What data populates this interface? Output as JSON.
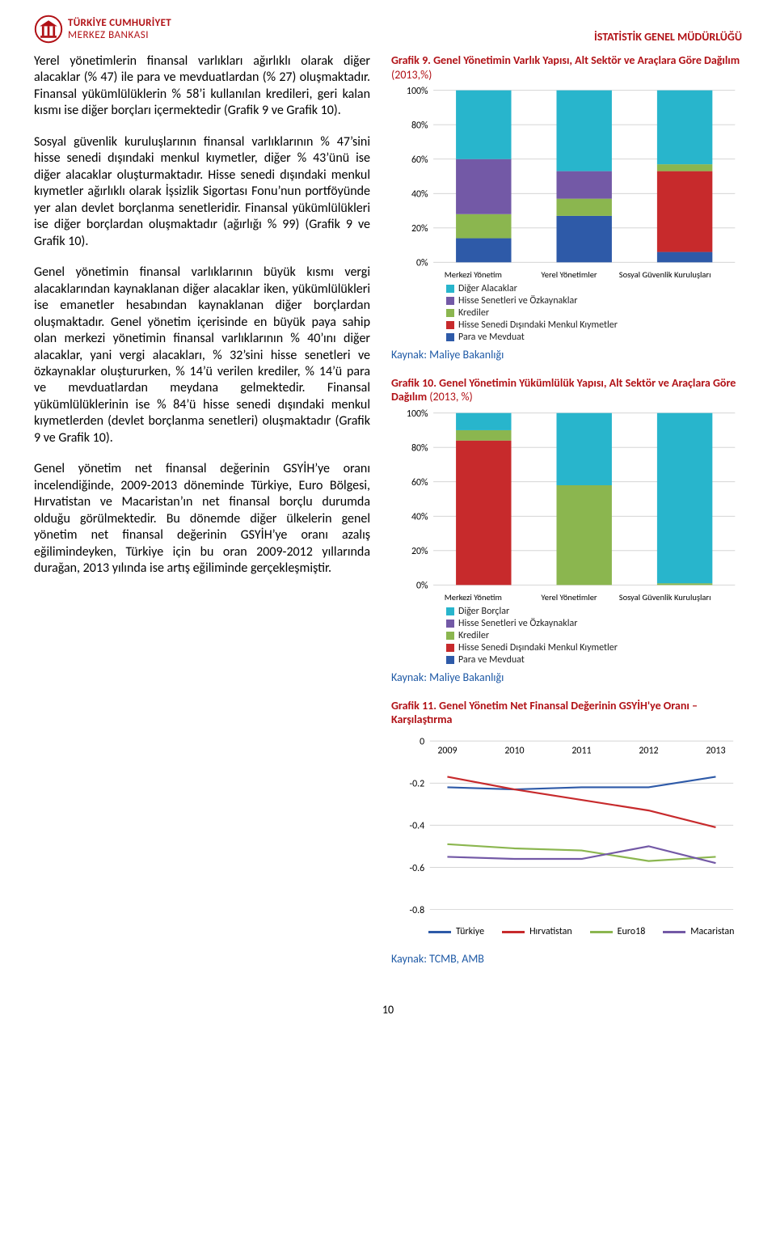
{
  "header": {
    "brand_line1": "TÜRKİYE CUMHURİYET",
    "brand_line2": "MERKEZ BANKASI",
    "right_label": "İSTATİSTİK GENEL MÜDÜRLÜĞÜ"
  },
  "paragraphs": {
    "p1": "Yerel yönetimlerin finansal varlıkları ağırlıklı olarak diğer alacaklar (% 47) ile para ve mevduatlardan (% 27) oluşmaktadır. Finansal yükümlülüklerin % 58’i kullanılan kredileri, geri kalan kısmı ise diğer borçları içermektedir (Grafik 9 ve Grafik 10).",
    "p2": "Sosyal güvenlik kuruluşlarının finansal varlıklarının % 47’sini hisse senedi dışındaki menkul kıymetler, diğer % 43’ünü ise diğer alacaklar oluşturmaktadır. Hisse senedi dışındaki menkul kıymetler ağırlıklı olarak İşsizlik Sigortası Fonu’nun portföyünde yer alan devlet borçlanma senetleridir. Finansal yükümlülükleri ise diğer borçlardan oluşmaktadır (ağırlığı % 99) (Grafik 9 ve Grafik 10).",
    "p3": "Genel yönetimin finansal varlıklarının büyük kısmı vergi alacaklarından kaynaklanan diğer alacaklar iken, yükümlülükleri ise emanetler hesabından kaynaklanan diğer borçlardan oluşmaktadır. Genel yönetim içerisinde en büyük paya sahip olan merkezi yönetimin finansal varlıklarının % 40’ını diğer alacaklar, yani vergi alacakları, % 32’sini hisse senetleri ve özkaynaklar oluştururken, % 14’ü verilen krediler, % 14’ü para ve mevduatlardan meydana gelmektedir. Finansal yükümlülüklerinin ise % 84’ü hisse senedi dışındaki menkul kıymetlerden (devlet borçlanma senetleri) oluşmaktadır (Grafik 9 ve Grafik 10).",
    "p4": "Genel yönetim net finansal değerinin GSYİH’ye oranı incelendiğinde, 2009-2013 döneminde Türkiye, Euro Bölgesi, Hırvatistan ve Macaristan’ın net finansal borçlu durumda olduğu görülmektedir. Bu dönemde diğer ülkelerin genel yönetim net finansal değerinin GSYİH’ye oranı azalış eğilimindeyken, Türkiye için bu oran 2009-2012 yıllarında durağan, 2013 yılında ise artış eğiliminde gerçekleşmiştir."
  },
  "chart9": {
    "title_lead": "Grafik 9.",
    "title_rest": " Genel Yönetimin Varlık Yapısı, Alt Sektör ve Araçlara Göre Dağılım ",
    "title_paren": "(2013,%)",
    "type": "stacked-bar",
    "categories": [
      "Merkezi Yönetim",
      "Yerel Yönetimler",
      "Sosyal Güvenlik Kuruluşları"
    ],
    "ylabels": [
      "0%",
      "20%",
      "40%",
      "60%",
      "80%",
      "100%"
    ],
    "series": [
      {
        "name": "Para ve Mevduat",
        "color": "#2e5aa8",
        "vals": [
          14,
          27,
          6
        ]
      },
      {
        "name": "Hisse Senedi Dışındaki Menkul Kıymetler",
        "color": "#c72a2c",
        "vals": [
          0,
          0,
          47
        ]
      },
      {
        "name": "Krediler",
        "color": "#8bb64f",
        "vals": [
          14,
          10,
          4
        ]
      },
      {
        "name": "Hisse Senetleri ve Özkaynaklar",
        "color": "#7359a6",
        "vals": [
          32,
          16,
          0
        ]
      },
      {
        "name": "Diğer Alacaklar",
        "color": "#28b5cc",
        "vals": [
          40,
          47,
          43
        ]
      }
    ],
    "legend_items": [
      {
        "name": "Diğer Alacaklar",
        "color": "#28b5cc"
      },
      {
        "name": "Hisse Senetleri ve Özkaynaklar",
        "color": "#7359a6"
      },
      {
        "name": "Krediler",
        "color": "#8bb64f"
      },
      {
        "name": "Hisse Senedi Dışındaki Menkul Kıymetler",
        "color": "#c72a2c"
      },
      {
        "name": "Para ve Mevduat",
        "color": "#2e5aa8"
      }
    ],
    "source": "Kaynak: Maliye Bakanlığı",
    "grid_color": "#cfcfcf",
    "bar_width": 0.55,
    "plot_bg": "#ffffff"
  },
  "chart10": {
    "title_lead": "Grafik 10.",
    "title_rest": "  Genel Yönetimin Yükümlülük Yapısı, Alt Sektör ve Araçlara Göre Dağılım ",
    "title_paren": "(2013, %)",
    "type": "stacked-bar",
    "categories": [
      "Merkezi Yönetim",
      "Yerel Yönetimler",
      "Sosyal Güvenlik Kuruluşları"
    ],
    "ylabels": [
      "0%",
      "20%",
      "40%",
      "60%",
      "80%",
      "100%"
    ],
    "series": [
      {
        "name": "Para ve Mevduat",
        "color": "#2e5aa8",
        "vals": [
          0,
          0,
          0
        ]
      },
      {
        "name": "Hisse Senedi Dışındaki Menkul Kıymetler",
        "color": "#c72a2c",
        "vals": [
          84,
          0,
          0
        ]
      },
      {
        "name": "Krediler",
        "color": "#8bb64f",
        "vals": [
          6,
          58,
          1
        ]
      },
      {
        "name": "Hisse Senetleri ve Özkaynaklar",
        "color": "#7359a6",
        "vals": [
          0,
          0,
          0
        ]
      },
      {
        "name": "Diğer Borçlar",
        "color": "#28b5cc",
        "vals": [
          10,
          42,
          99
        ]
      }
    ],
    "legend_items": [
      {
        "name": "Diğer Borçlar",
        "color": "#28b5cc"
      },
      {
        "name": "Hisse Senetleri ve Özkaynaklar",
        "color": "#7359a6"
      },
      {
        "name": "Krediler",
        "color": "#8bb64f"
      },
      {
        "name": "Hisse Senedi Dışındaki Menkul Kıymetler",
        "color": "#c72a2c"
      },
      {
        "name": "Para ve Mevduat",
        "color": "#2e5aa8"
      }
    ],
    "source": "Kaynak: Maliye Bakanlığı",
    "grid_color": "#cfcfcf",
    "bar_width": 0.55,
    "plot_bg": "#ffffff"
  },
  "chart11": {
    "title_lead": "Grafik 11.",
    "title_rest": "  Genel Yönetim Net Finansal Değerinin GSYİH'ye Oranı – Karşılaştırma",
    "type": "line",
    "xlabels": [
      "2009",
      "2010",
      "2011",
      "2012",
      "2013"
    ],
    "ylabels": [
      "0",
      "-0.2",
      "-0.4",
      "-0.6",
      "-0.8"
    ],
    "grid_color": "#cfcfcf",
    "series": [
      {
        "name": "Türkiye",
        "color": "#2e5aa8",
        "vals": [
          -0.22,
          -0.23,
          -0.22,
          -0.22,
          -0.17
        ]
      },
      {
        "name": "Hırvatistan",
        "color": "#c72a2c",
        "vals": [
          -0.17,
          -0.23,
          -0.28,
          -0.33,
          -0.41
        ]
      },
      {
        "name": "Euro18",
        "color": "#8bb64f",
        "vals": [
          -0.49,
          -0.51,
          -0.52,
          -0.57,
          -0.55
        ]
      },
      {
        "name": "Macaristan",
        "color": "#7359a6",
        "vals": [
          -0.55,
          -0.56,
          -0.56,
          -0.5,
          -0.58
        ]
      }
    ],
    "source": "Kaynak: TCMB, AMB",
    "line_width": 2
  },
  "page_number": "10"
}
